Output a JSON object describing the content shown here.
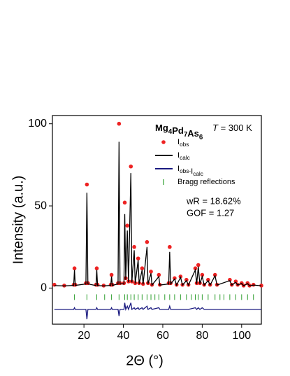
{
  "chart_data": {
    "type": "scatter",
    "title": "Mg4Pd7As6",
    "annotations": [
      "T = 300 K",
      "wR = 18.62%",
      "GOF = 1.27"
    ],
    "x_label": "2Θ (°)",
    "y_label": "Intensity (a.u.)",
    "xlim": [
      4,
      110
    ],
    "ylim": [
      -22,
      105
    ],
    "xticks": [
      20,
      40,
      60,
      80,
      100
    ],
    "yticks": [
      0,
      50,
      100
    ],
    "x": [
      5,
      10,
      14.8,
      15.2,
      15.6,
      21,
      21.5,
      22,
      26.1,
      26.5,
      26.9,
      30,
      33.6,
      34,
      34.4,
      37.3,
      37.8,
      38.3,
      40.3,
      40.7,
      41.2,
      42,
      42.6,
      43.8,
      44.3,
      45.5,
      46,
      47.5,
      48,
      49.5,
      50,
      52,
      52.5,
      54,
      54.5,
      58,
      58.5,
      63,
      63.5,
      64,
      66,
      67,
      69,
      70,
      72,
      73,
      76.5,
      77.2,
      78,
      78.8,
      80,
      81,
      83,
      84,
      86.5,
      87.5,
      94,
      95,
      97,
      98,
      100,
      101,
      103,
      104,
      106,
      110
    ],
    "series": [
      {
        "name": "Iobs",
        "color": "#ee2222",
        "style": "points",
        "values": [
          2,
          1.5,
          2,
          12,
          2,
          3,
          63,
          3,
          2,
          12,
          2,
          1.5,
          2,
          8,
          2,
          3,
          100,
          3,
          3,
          52,
          6,
          38,
          4,
          74,
          4,
          25,
          3,
          18,
          3,
          12,
          2.5,
          28,
          3,
          10,
          2,
          8,
          2,
          3,
          25,
          3,
          6,
          2,
          7,
          2,
          5,
          2,
          12,
          3,
          14,
          3,
          8,
          2,
          5,
          2,
          8,
          2,
          5,
          2,
          4,
          2,
          3,
          1.5,
          3,
          1.5,
          2,
          1.5
        ]
      },
      {
        "name": "Icalc",
        "color": "#000000",
        "style": "line",
        "values": [
          1.5,
          1.3,
          1.6,
          11,
          1.6,
          2.5,
          58,
          2.5,
          1.5,
          11,
          1.5,
          1.3,
          1.6,
          7,
          1.6,
          2.5,
          89,
          2.5,
          2.5,
          45,
          5,
          35,
          3.5,
          70,
          3.5,
          23,
          2.8,
          17,
          2.5,
          11,
          2.2,
          25,
          2.5,
          9,
          1.8,
          7,
          1.8,
          2.5,
          22,
          2.5,
          5.5,
          1.8,
          6.5,
          1.8,
          4.5,
          1.8,
          11,
          2.5,
          13,
          2.5,
          7,
          1.8,
          4.5,
          1.8,
          7.5,
          1.8,
          4.5,
          1.8,
          3.5,
          1.8,
          2.8,
          1.4,
          2.7,
          1.4,
          1.8,
          1.4
        ]
      },
      {
        "name": "Iobs-Icalc",
        "color": "#1a1a80",
        "style": "line",
        "values": [
          -13,
          -13,
          -13,
          -12,
          -13,
          -13,
          -19,
          -13,
          -13,
          -12,
          -13,
          -13,
          -13,
          -12,
          -13,
          -13,
          -17,
          -13,
          -13,
          -9,
          -13,
          -11,
          -13,
          -9,
          -13,
          -12,
          -13,
          -12,
          -13,
          -12,
          -13,
          -11,
          -13,
          -12,
          -13,
          -12,
          -13,
          -13,
          -11,
          -13,
          -13,
          -13,
          -13,
          -13,
          -13,
          -13,
          -12,
          -13,
          -12,
          -13,
          -12,
          -13,
          -13,
          -13,
          -13,
          -13,
          -13,
          -13,
          -13,
          -13,
          -13,
          -13,
          -13,
          -13,
          -13,
          -13
        ]
      },
      {
        "name": "Bragg reflections",
        "color": "#2e9e2e",
        "style": "bragg",
        "x": [
          15.2,
          21.5,
          26.5,
          30.5,
          34,
          37.8,
          40.7,
          42,
          43.8,
          45.5,
          47.5,
          49.5,
          52,
          54,
          56,
          58,
          61,
          63.5,
          66,
          69,
          72,
          74.5,
          76.5,
          78,
          80,
          83,
          86.5,
          89,
          91,
          94,
          97,
          100,
          103,
          106
        ]
      }
    ]
  }
}
